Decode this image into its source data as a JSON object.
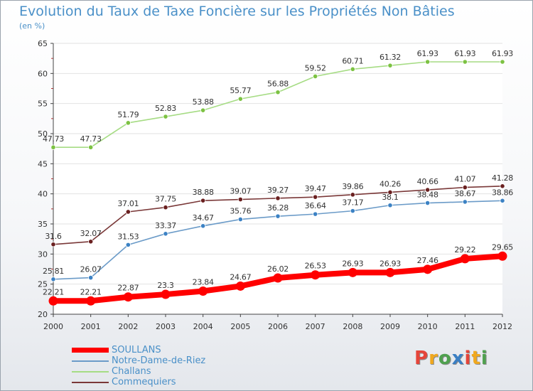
{
  "title": "Evolution du Taux de Taxe Foncière sur les Propriétés Non Bâties",
  "subtitle": "(en %)",
  "logo": {
    "text": "Proxiti",
    "colors": [
      "#e5453a",
      "#f0a81e",
      "#4fa14f",
      "#3a7fc4",
      "#e5453a",
      "#f0a81e",
      "#4fa14f"
    ]
  },
  "colors": {
    "accent_text": "#4a90c8",
    "grid": "#e2e2e2",
    "axis": "#444444"
  },
  "chart_data": {
    "type": "line",
    "x": [
      "2000",
      "2001",
      "2002",
      "2003",
      "2004",
      "2005",
      "2006",
      "2007",
      "2008",
      "2009",
      "2010",
      "2011",
      "2012"
    ],
    "ylim": [
      20,
      65
    ],
    "yticks": [
      20,
      25,
      30,
      35,
      40,
      45,
      50,
      55,
      60,
      65
    ],
    "grid": true,
    "legend_position": "bottom-left",
    "series": [
      {
        "name": "SOULLANS",
        "color": "#ff0000",
        "bold": true,
        "values": [
          22.21,
          22.21,
          22.87,
          23.3,
          23.84,
          24.67,
          26.02,
          26.53,
          26.93,
          26.93,
          27.46,
          29.22,
          29.65
        ],
        "labels": [
          "22.21",
          "22.21",
          "22.87",
          "23.3",
          "23.84",
          "24.67",
          "26.02",
          "26.53",
          "26.93",
          "26.93",
          "27.46",
          "29.22",
          "29.65"
        ]
      },
      {
        "name": "Notre-Dame-de-Riez",
        "color": "#6b9bc8",
        "point": "#3c82c4",
        "values": [
          25.81,
          26.07,
          31.53,
          33.37,
          34.67,
          35.76,
          36.28,
          36.64,
          37.17,
          38.1,
          38.48,
          38.67,
          38.86
        ],
        "labels": [
          "25.81",
          "26.07",
          "31.53",
          "33.37",
          "34.67",
          "35.76",
          "36.28",
          "36.64",
          "37.17",
          "38.1",
          "38.48",
          "38.67",
          "38.86"
        ]
      },
      {
        "name": "Challans",
        "color": "#a6dc84",
        "point": "#7cc242",
        "values": [
          47.73,
          47.73,
          51.79,
          52.83,
          53.88,
          55.77,
          56.88,
          59.52,
          60.71,
          61.32,
          61.93,
          61.93,
          61.93
        ],
        "labels": [
          "47.73",
          "47.73",
          "51.79",
          "52.83",
          "53.88",
          "55.77",
          "56.88",
          "59.52",
          "60.71",
          "61.32",
          "61.93",
          "61.93",
          "61.93"
        ]
      },
      {
        "name": "Commequiers",
        "color": "#7a3838",
        "point": "#6a2020",
        "values": [
          31.6,
          32.07,
          37.01,
          37.75,
          38.88,
          39.07,
          39.27,
          39.47,
          39.86,
          40.26,
          40.66,
          41.07,
          41.28
        ],
        "labels": [
          "31.6",
          "32.07",
          "37.01",
          "37.75",
          "38.88",
          "39.07",
          "39.27",
          "39.47",
          "39.86",
          "40.26",
          "40.66",
          "41.07",
          "41.28"
        ]
      }
    ]
  }
}
